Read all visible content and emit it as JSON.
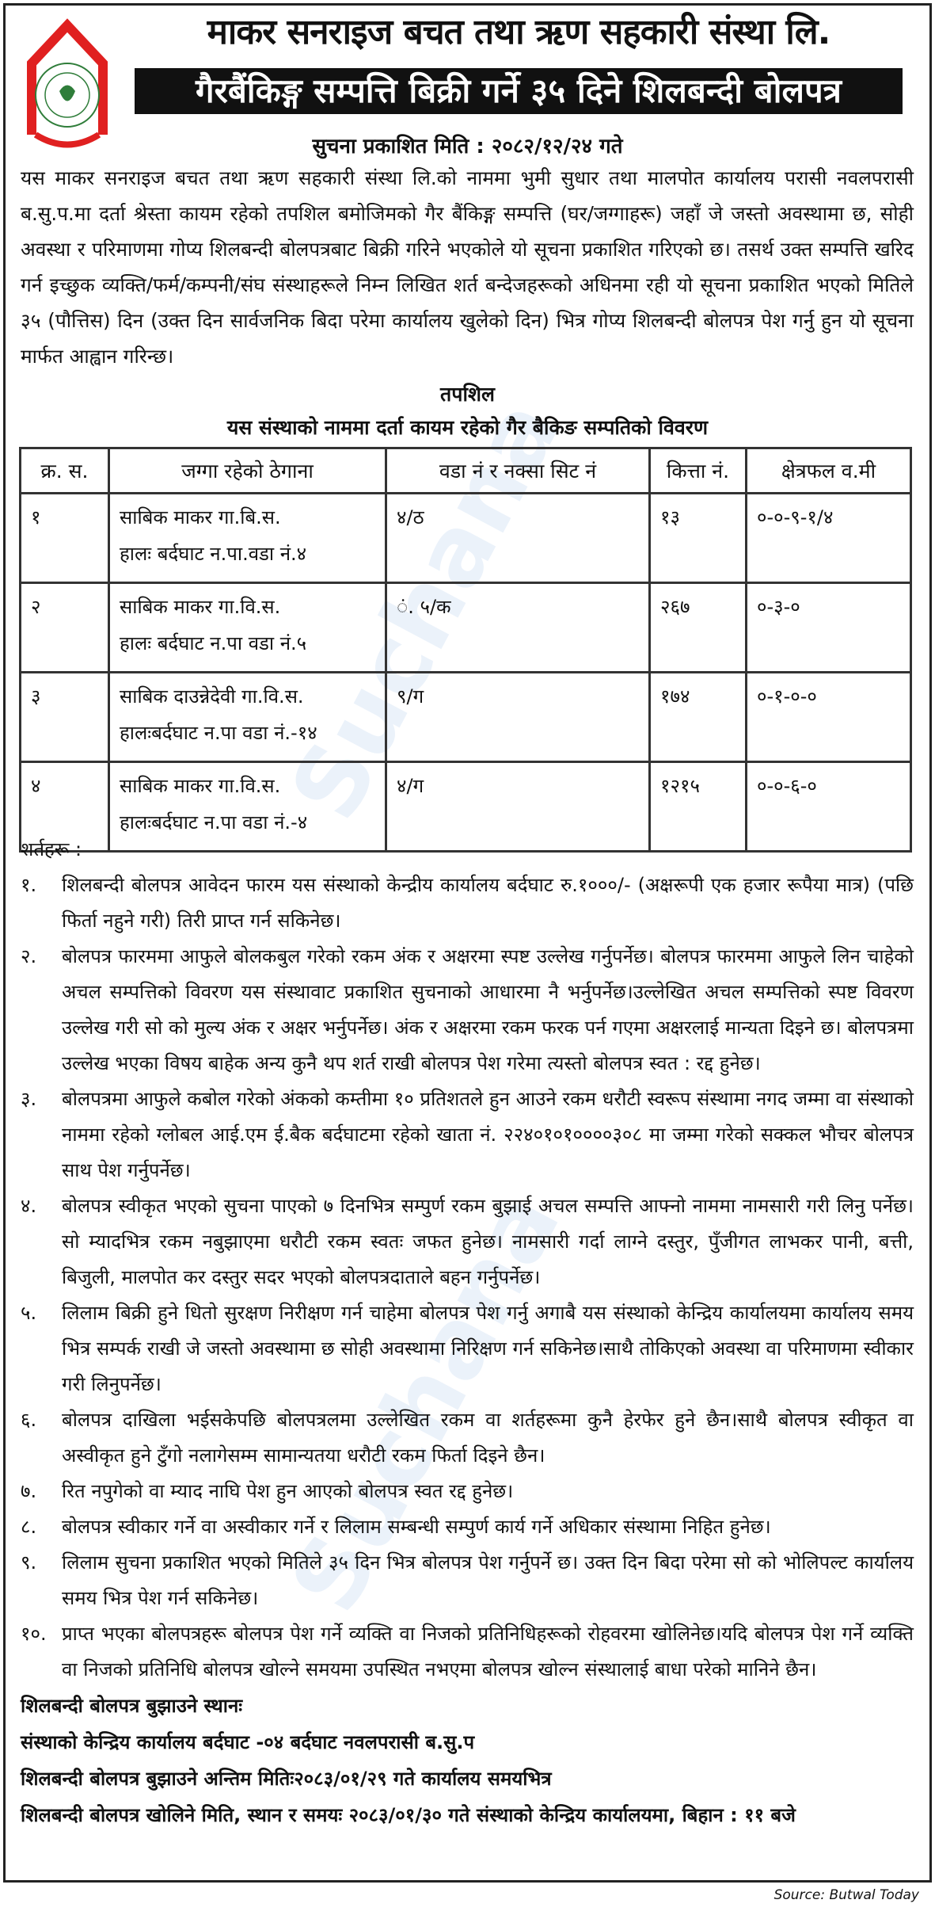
{
  "header": {
    "org_name": "माकर सनराइज बचत तथा ऋण सहकारी संस्था लि.",
    "banner": "गैरबैंकिङ्ग सम्पत्ति बिक्री गर्ने ३५ दिने शिलबन्दी बोलपत्र",
    "logo": "logo-seal"
  },
  "pub_date": "सुचना प्रकाशित मिति : २०८२/१२/२४ गते",
  "intro": "यस माकर सनराइज बचत तथा ऋण सहकारी संस्था लि.को नाममा भुमी सुधार तथा मालपोत कार्यालय परासी नवलपरासी ब.सु.प.मा दर्ता श्रेस्ता कायम रहेको तपशिल बमोजिमको गैर बैंकिङ्ग सम्पत्ति (घर/जग्गाहरू) जहाँ जे जस्तो अवस्थामा छ, सोही अवस्था र परिमाणमा गोप्य शिलबन्दी बोलपत्रबाट बिक्री गरिने भएकोले यो सूचना प्रकाशित गरिएको छ। तसर्थ उक्त सम्पत्ति खरिद गर्न इच्छुक व्यक्ति/फर्म/कम्पनी/संघ संस्थाहरूले निम्न लिखित शर्त बन्देजहरूको अधिनमा रही यो सूचना प्रकाशित भएको मितिले ३५ (पौत्तिस) दिन (उक्त दिन सार्वजनिक बिदा परेमा कार्यालय खुलेको दिन) भित्र गोप्य शिलबन्दी बोलपत्र पेश गर्नु हुन यो सूचना मार्फत आह्वान गरिन्छ।",
  "schedule_heading": "तपशिल",
  "table_title": "यस संस्थाको नाममा दर्ता कायम रहेको गैर बैकिङ सम्पतिको विवरण",
  "table": {
    "headers": [
      "क्र. स.",
      "जग्गा रहेको ठेगाना",
      "वडा नं र नक्सा सिट नं",
      "कित्ता नं.",
      "क्षेत्रफल व.मी"
    ],
    "rows": [
      {
        "sn": "१",
        "addr1": "साबिक माकर गा.बि.स.",
        "addr2": "हालः बर्दघाट न.पा.वडा नं.४",
        "ward": "४/ठ",
        "kitta": "१३",
        "area": "०-०-९-१/४"
      },
      {
        "sn": "२",
        "addr1": "साबिक माकर गा.वि.स.",
        "addr2": "हालः बर्दघाट न.पा वडा नं.५",
        "ward": "ं. ५/क",
        "kitta": "२६७",
        "area": "०-३-०"
      },
      {
        "sn": "३",
        "addr1": "साबिक दाउन्नेदेवी गा.वि.स.",
        "addr2": "हालःबर्दघाट न.पा वडा नं.-१४",
        "ward": "९/ग",
        "kitta": "१७४",
        "area": "०-१-०-०"
      },
      {
        "sn": "४",
        "addr1": "साबिक माकर गा.वि.स.",
        "addr2": "हालःबर्दघाट न.पा वडा नं.-४",
        "ward": "४/ग",
        "kitta": "१२१५",
        "area": "०-०-६-०"
      }
    ]
  },
  "conditions_heading": "शर्तहरू :",
  "conditions": [
    {
      "n": "१.",
      "text": "शिलबन्दी बोलपत्र आवेदन फारम यस संस्थाको केन्द्रीय कार्यालय बर्दघाट रु.१०००/- (अक्षरूपी एक हजार रूपैया मात्र) (पछि फिर्ता नहुने गरी) तिरी प्राप्त गर्न सकिनेछ।"
    },
    {
      "n": "२.",
      "text": "बोलपत्र फारममा आफुले बोलकबुल गरेको रकम अंक र अक्षरमा स्पष्ट उल्लेख गर्नुपर्नेछ। बोलपत्र फारममा आफुले लिन चाहेको अचल सम्पत्तिको विवरण यस संस्थावाट प्रकाशित सुचनाको आधारमा नै भर्नुपर्नेछ।उल्लेखित अचल सम्पत्तिको स्पष्ट विवरण उल्लेख गरी सो को मुल्य अंक र अक्षर भर्नुपर्नेछ। अंक र अक्षरमा रकम फरक पर्न गएमा अक्षरलाई मान्यता दिइने छ। बोलपत्रमा उल्लेख भएका विषय बाहेक अन्य कुनै थप शर्त राखी बोलपत्र पेश गरेमा त्यस्तो बोलपत्र स्वत : रद्द हुनेछ।"
    },
    {
      "n": "३.",
      "text": "बोलपत्रमा आफुले कबोल गरेको अंकको कम्तीमा १० प्रतिशतले हुन आउने रकम धरौटी स्वरूप संस्थामा नगद जम्मा वा संस्थाको नाममा रहेको ग्लोबल आई.एम ई.बैक बर्दघाटमा रहेको खाता नं. २२४०१०१००००३०८ मा जम्मा गरेको सक्कल भौचर बोलपत्र साथ पेश गर्नुपर्नेछ।"
    },
    {
      "n": "४.",
      "text": "बोलपत्र स्वीकृत भएको सुचना पाएको ७ दिनभित्र सम्पुर्ण रकम बुझाई अचल सम्पत्ति आफ्नो नाममा नामसारी गरी लिनु पर्नेछ।सो म्यादभित्र रकम नबुझाएमा धरौटी रकम स्वतः जफत हुनेछ। नामसारी गर्दा लाग्ने दस्तुर, पुँजीगत लाभकर पानी, बत्ती, बिजुली, मालपोत कर दस्तुर सदर भएको बोलपत्रदाताले बहन गर्नुपर्नेछ।"
    },
    {
      "n": "५.",
      "text": "लिलाम बिक्री हुने धितो सुरक्षण निरीक्षण गर्न चाहेमा बोलपत्र पेश गर्नु अगाबै यस संस्थाको केन्द्रिय कार्यालयमा कार्यालय समय भित्र सम्पर्क राखी जे जस्तो अवस्थामा छ सोही अवस्थामा निरिक्षण गर्न सकिनेछ।साथै तोकिएको अवस्था वा परिमाणमा स्वीकार गरी लिनुपर्नेछ।"
    },
    {
      "n": "६.",
      "text": "बोलपत्र दाखिला भईसकेपछि बोलपत्रलमा उल्लेखित रकम वा शर्तहरूमा कुनै हेरफेर हुने छैन।साथै बोलपत्र स्वीकृत वा अस्वीकृत हुने टुँगो नलागेसम्म सामान्यतया धरौटी रकम फिर्ता दिइने छैन।"
    },
    {
      "n": "७.",
      "text": "रित नपुगेको वा म्याद नाघि पेश हुन आएको बोलपत्र स्वत रद्द हुनेछ।"
    },
    {
      "n": "८.",
      "text": "बोलपत्र स्वीकार गर्ने वा अस्वीकार गर्ने र लिलाम सम्बन्धी सम्पुर्ण कार्य गर्ने अधिकार संस्थामा निहित हुनेछ।"
    },
    {
      "n": "९.",
      "text": "लिलाम सुचना प्रकाशित भएको मितिले ३५ दिन भित्र बोलपत्र पेश गर्नुपर्ने छ। उक्त दिन बिदा परेमा सो को भोलिपल्ट कार्यालय समय भित्र पेश गर्न सकिनेछ।"
    },
    {
      "n": "१०.",
      "text": "प्राप्त भएका बोलपत्रहरू बोलपत्र पेश गर्ने व्यक्ति वा निजको प्रतिनिधिहरूको रोहवरमा खोलिनेछ।यदि बोलपत्र पेश गर्ने व्यक्ति वा निजको प्रतिनिधि बोलपत्र खोल्ने समयमा उपस्थित नभएमा बोलपत्र खोल्न संस्थालाई बाधा परेको मानिने छैन।"
    }
  ],
  "footer": [
    "शिलबन्दी बोलपत्र बुझाउने स्थानः",
    "संस्थाको केन्द्रिय कार्यालय बर्दघाट -०४ बर्दघाट नवलपरासी ब.सु.प",
    "शिलबन्दी बोलपत्र बुझाउने अन्तिम मितिः२०८३/०१/२९ गते कार्यालय समयभित्र",
    "शिलबन्दी बोलपत्र खोलिने मिति, स्थान र समयः २०८३/०१/३० गते संस्थाको केन्द्रिय कार्यालयमा, बिहान : ११ बजे"
  ],
  "source": "Source: Butwal Today",
  "watermark": "Suchana",
  "colors": {
    "banner": "#111111",
    "logo_red": "#e02020",
    "logo_green": "#2f7d3a"
  }
}
